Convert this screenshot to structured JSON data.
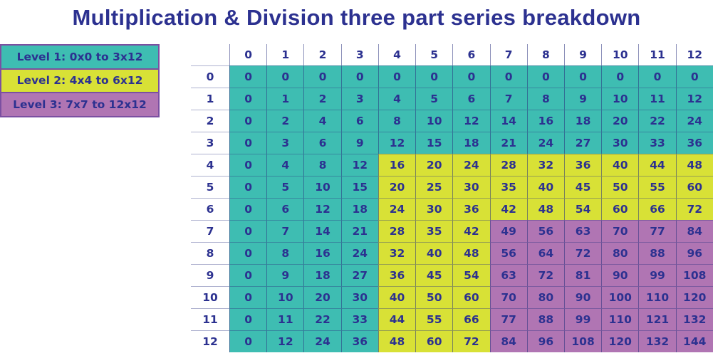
{
  "title": "Multiplication & Division three part series breakdown",
  "colors": {
    "level1": "#3EBDB2",
    "level2": "#D8E136",
    "level3": "#B075B3",
    "text": "#2c3190",
    "legend_border": "#7B4FA1",
    "grid_line": "#2B3380"
  },
  "legend": {
    "items": [
      {
        "label": "Level 1: 0x0 to 3x12",
        "level": 1,
        "color": "#3EBDB2"
      },
      {
        "label": "Level 2: 4x4 to 6x12",
        "level": 2,
        "color": "#D8E136"
      },
      {
        "label": "Level 3: 7x7 to 12x12",
        "level": 3,
        "color": "#B075B3"
      }
    ]
  },
  "table": {
    "column_headers": [
      "0",
      "1",
      "2",
      "3",
      "4",
      "5",
      "6",
      "7",
      "8",
      "9",
      "10",
      "11",
      "12"
    ],
    "row_headers": [
      "0",
      "1",
      "2",
      "3",
      "4",
      "5",
      "6",
      "7",
      "8",
      "9",
      "10",
      "11",
      "12"
    ],
    "level_thresholds": {
      "level1_max": 3,
      "level2_max": 6
    },
    "values": [
      [
        0,
        0,
        0,
        0,
        0,
        0,
        0,
        0,
        0,
        0,
        0,
        0,
        0
      ],
      [
        0,
        1,
        2,
        3,
        4,
        5,
        6,
        7,
        8,
        9,
        10,
        11,
        12
      ],
      [
        0,
        2,
        4,
        6,
        8,
        10,
        12,
        14,
        16,
        18,
        20,
        22,
        24
      ],
      [
        0,
        3,
        6,
        9,
        12,
        15,
        18,
        21,
        24,
        27,
        30,
        33,
        36
      ],
      [
        0,
        4,
        8,
        12,
        16,
        20,
        24,
        28,
        32,
        36,
        40,
        44,
        48
      ],
      [
        0,
        5,
        10,
        15,
        20,
        25,
        30,
        35,
        40,
        45,
        50,
        55,
        60
      ],
      [
        0,
        6,
        12,
        18,
        24,
        30,
        36,
        42,
        48,
        54,
        60,
        66,
        72
      ],
      [
        0,
        7,
        14,
        21,
        28,
        35,
        42,
        49,
        56,
        63,
        70,
        77,
        84
      ],
      [
        0,
        8,
        16,
        24,
        32,
        40,
        48,
        56,
        64,
        72,
        80,
        88,
        96
      ],
      [
        0,
        9,
        18,
        27,
        36,
        45,
        54,
        63,
        72,
        81,
        90,
        99,
        108
      ],
      [
        0,
        10,
        20,
        30,
        40,
        50,
        60,
        70,
        80,
        90,
        100,
        110,
        120
      ],
      [
        0,
        11,
        22,
        33,
        44,
        55,
        66,
        77,
        88,
        99,
        110,
        121,
        132
      ],
      [
        0,
        12,
        24,
        36,
        48,
        60,
        72,
        84,
        96,
        108,
        120,
        132,
        144
      ]
    ]
  },
  "chart_data": {
    "type": "table",
    "title": "Multiplication & Division three part series breakdown",
    "x": [
      0,
      1,
      2,
      3,
      4,
      5,
      6,
      7,
      8,
      9,
      10,
      11,
      12
    ],
    "y": [
      0,
      1,
      2,
      3,
      4,
      5,
      6,
      7,
      8,
      9,
      10,
      11,
      12
    ],
    "values": [
      [
        0,
        0,
        0,
        0,
        0,
        0,
        0,
        0,
        0,
        0,
        0,
        0,
        0
      ],
      [
        0,
        1,
        2,
        3,
        4,
        5,
        6,
        7,
        8,
        9,
        10,
        11,
        12
      ],
      [
        0,
        2,
        4,
        6,
        8,
        10,
        12,
        14,
        16,
        18,
        20,
        22,
        24
      ],
      [
        0,
        3,
        6,
        9,
        12,
        15,
        18,
        21,
        24,
        27,
        30,
        33,
        36
      ],
      [
        0,
        4,
        8,
        12,
        16,
        20,
        24,
        28,
        32,
        36,
        40,
        44,
        48
      ],
      [
        0,
        5,
        10,
        15,
        20,
        25,
        30,
        35,
        40,
        45,
        50,
        55,
        60
      ],
      [
        0,
        6,
        12,
        18,
        24,
        30,
        36,
        42,
        48,
        54,
        60,
        66,
        72
      ],
      [
        0,
        7,
        14,
        21,
        28,
        35,
        42,
        49,
        56,
        63,
        70,
        77,
        84
      ],
      [
        0,
        8,
        16,
        24,
        32,
        40,
        48,
        56,
        64,
        72,
        80,
        88,
        96
      ],
      [
        0,
        9,
        18,
        27,
        36,
        45,
        54,
        63,
        72,
        81,
        90,
        99,
        108
      ],
      [
        0,
        10,
        20,
        30,
        40,
        50,
        60,
        70,
        80,
        90,
        100,
        110,
        120
      ],
      [
        0,
        11,
        22,
        33,
        44,
        55,
        66,
        77,
        88,
        99,
        110,
        121,
        132
      ],
      [
        0,
        12,
        24,
        36,
        48,
        60,
        72,
        84,
        96,
        108,
        120,
        132,
        144
      ]
    ],
    "regions": [
      {
        "name": "Level 1",
        "range": "0x0 to 3x12",
        "rule": "min(row,col) <= 3",
        "color": "#3EBDB2"
      },
      {
        "name": "Level 2",
        "range": "4x4 to 6x12",
        "rule": "4 <= min(row,col) <= 6",
        "color": "#D8E136"
      },
      {
        "name": "Level 3",
        "range": "7x7 to 12x12",
        "rule": "min(row,col) >= 7",
        "color": "#B075B3"
      }
    ],
    "legend_position": "top-left",
    "grid": true
  }
}
